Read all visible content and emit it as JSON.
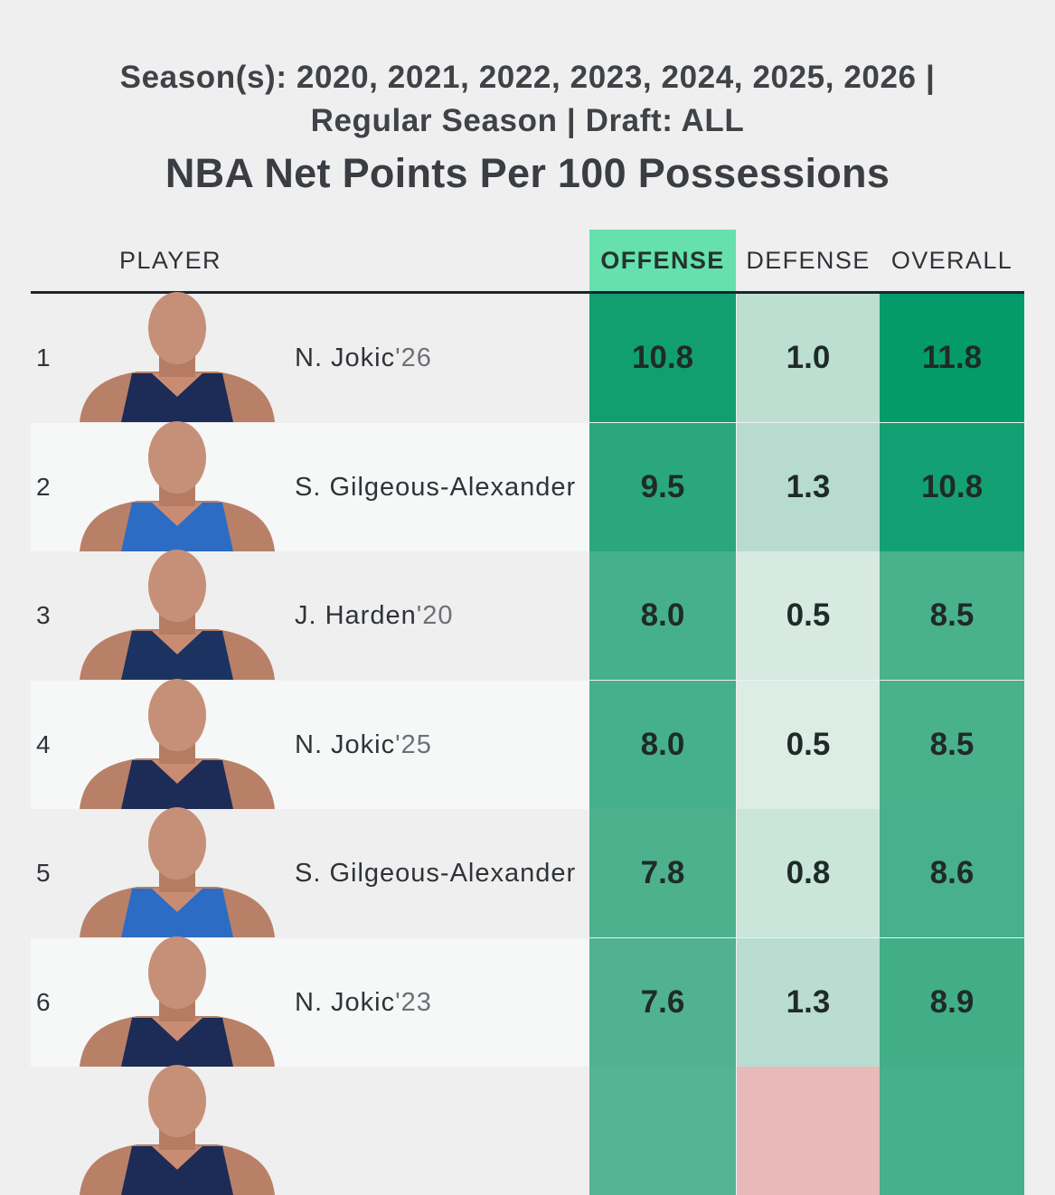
{
  "subtitle_line1": "Season(s): 2020, 2021, 2022, 2023, 2024, 2025, 2026 |",
  "subtitle_line2": "Regular Season | Draft: ALL",
  "title": "NBA Net Points Per 100 Possessions",
  "headers": {
    "player": "PLAYER",
    "offense": "OFFENSE",
    "defense": "DEFENSE",
    "overall": "OVERALL"
  },
  "chart_data": {
    "type": "table",
    "title": "NBA Net Points Per 100 Possessions",
    "columns": [
      "PLAYER",
      "OFFENSE",
      "DEFENSE",
      "OVERALL"
    ],
    "sorted_by": "OFFENSE",
    "rows": [
      {
        "rank": "1",
        "name": "N. Jokic",
        "year": "'26",
        "offense": 10.8,
        "defense": 1.0,
        "overall": 11.8,
        "off_color": "#119f70",
        "def_color": "#bcdfd2",
        "ovr_color": "#049b69",
        "row_bg": "#efefef",
        "jersey": "#1d2b57"
      },
      {
        "rank": "2",
        "name": "S. Gilgeous-Alexander",
        "year": "",
        "offense": 9.5,
        "defense": 1.3,
        "overall": 10.8,
        "off_color": "#2aa77c",
        "def_color": "#b7dccf",
        "ovr_color": "#13a072",
        "row_bg": "#f6f7f7",
        "jersey": "#2c6cc4"
      },
      {
        "rank": "3",
        "name": "J. Harden",
        "year": "'20",
        "offense": 8.0,
        "defense": 0.5,
        "overall": 8.5,
        "off_color": "#46b08c",
        "def_color": "#d6eae2",
        "ovr_color": "#4ab18d",
        "row_bg": "#efefef",
        "jersey": "#1c3361"
      },
      {
        "rank": "4",
        "name": "N. Jokic",
        "year": "'25",
        "offense": 8.0,
        "defense": 0.5,
        "overall": 8.5,
        "off_color": "#46b08c",
        "def_color": "#dcede6",
        "ovr_color": "#4ab18d",
        "row_bg": "#f6f7f7",
        "jersey": "#1d2b57"
      },
      {
        "rank": "5",
        "name": "S. Gilgeous-Alexander",
        "year": "",
        "offense": 7.8,
        "defense": 0.8,
        "overall": 8.6,
        "off_color": "#4db18e",
        "def_color": "#cae5da",
        "ovr_color": "#48b08c",
        "row_bg": "#efefef",
        "jersey": "#2c6cc4"
      },
      {
        "rank": "6",
        "name": "N. Jokic",
        "year": "'23",
        "offense": 7.6,
        "defense": 1.3,
        "overall": 8.9,
        "off_color": "#50b290",
        "def_color": "#b9ddd0",
        "ovr_color": "#41ae88",
        "row_bg": "#f6f7f7",
        "jersey": "#1d2b57"
      }
    ],
    "partial_row_colors": {
      "off_color": "#55b493",
      "def_color": "#e9b8b8",
      "ovr_color": "#46af8b"
    }
  }
}
